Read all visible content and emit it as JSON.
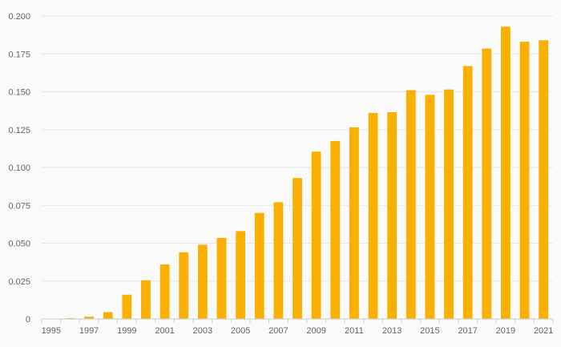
{
  "chart_data": {
    "type": "bar",
    "title": "",
    "xlabel": "",
    "ylabel": "",
    "categories": [
      "1995",
      "1996",
      "1997",
      "1998",
      "1999",
      "2000",
      "2001",
      "2002",
      "2003",
      "2004",
      "2005",
      "2006",
      "2007",
      "2008",
      "2009",
      "2010",
      "2011",
      "2012",
      "2013",
      "2014",
      "2015",
      "2016",
      "2017",
      "2018",
      "2019",
      "2020",
      "2021"
    ],
    "values": [
      0.0,
      0.0005,
      0.0015,
      0.0045,
      0.016,
      0.0255,
      0.036,
      0.044,
      0.049,
      0.0535,
      0.058,
      0.07,
      0.077,
      0.093,
      0.1105,
      0.1175,
      0.1265,
      0.136,
      0.1365,
      0.151,
      0.148,
      0.1515,
      0.167,
      0.1785,
      0.193,
      0.183,
      0.184
    ],
    "x_tick_labels": [
      "1995",
      "1997",
      "1999",
      "2001",
      "2003",
      "2005",
      "2007",
      "2009",
      "2011",
      "2013",
      "2015",
      "2017",
      "2019",
      "2021"
    ],
    "y_ticks": [
      "0",
      "0.025",
      "0.050",
      "0.075",
      "0.100",
      "0.125",
      "0.150",
      "0.175",
      "0.200"
    ],
    "ylim": [
      0,
      0.2
    ],
    "grid": true,
    "bar_color": "#f9b000",
    "grid_color": "#e6e6e6",
    "axis_color": "#cccccc",
    "text_color": "#666666"
  }
}
